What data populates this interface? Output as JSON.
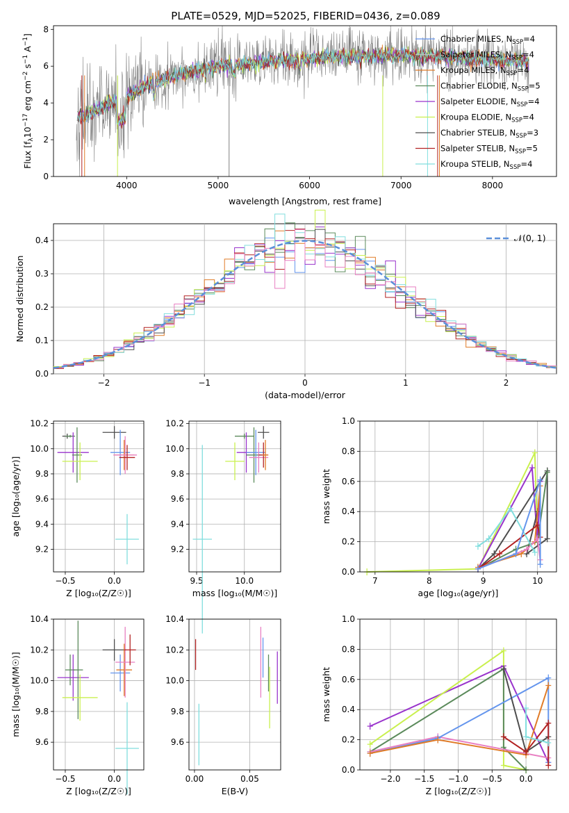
{
  "figure_title": "PLATE=0529, MJD=52025, FIBERID=0436, z=0.089",
  "series_colors": {
    "chabrier_miles": "#6495ed",
    "salpeter_miles": "#c0c0c0",
    "kroupa_miles": "#e07b27",
    "chabrier_elodie": "#5b8a5b",
    "salpeter_elodie": "#9933cc",
    "kroupa_elodie": "#c9f04e",
    "chabrier_stelib": "#4d4d4d",
    "salpeter_stelib": "#b22222",
    "kroupa_stelib": "#80dede",
    "pink": "#e87fc2",
    "data_gray": "#808080"
  },
  "chart_data": [
    {
      "id": "spectrum",
      "type": "line",
      "xlabel": "wavelength [Angstrom, rest frame]",
      "ylabel": "Flux [f_λ 10^-17 erg cm^-2 s^-1 A^-1]",
      "xlim": [
        3200,
        8700
      ],
      "ylim": [
        0,
        8.2
      ],
      "xticks": [
        "4000",
        "5000",
        "6000",
        "7000",
        "8000"
      ],
      "yticks": [
        "0",
        "2",
        "4",
        "6",
        "8"
      ],
      "legend": {
        "placement": "right",
        "entries": [
          {
            "name": "Chabrier MILES, N_SSP=4",
            "text": "Chabrier MILES, N",
            "sub": "SSP",
            "val": "=4",
            "color": "#6495ed"
          },
          {
            "name": "Salpeter MILES, N_SSP=4",
            "text": "Salpeter MILES, N",
            "sub": "SSP",
            "val": "=4",
            "color": "#c0c0c0"
          },
          {
            "name": "Kroupa MILES, N_SSP=4",
            "text": "Kroupa MILES, N",
            "sub": "SSP",
            "val": "=4",
            "color": "#e07b27"
          },
          {
            "name": "Chabrier ELODIE, N_SSP=5",
            "text": "Chabrier ELODIE, N",
            "sub": "SSP",
            "val": "=5",
            "color": "#5b8a5b"
          },
          {
            "name": "Salpeter ELODIE, N_SSP=4",
            "text": "Salpeter ELODIE, N",
            "sub": "SSP",
            "val": "=4",
            "color": "#9933cc"
          },
          {
            "name": "Kroupa ELODIE, N_SSP=4",
            "text": "Kroupa ELODIE, N",
            "sub": "SSP",
            "val": "=4",
            "color": "#c9f04e"
          },
          {
            "name": "Chabrier STELIB, N_SSP=3",
            "text": "Chabrier STELIB, N",
            "sub": "SSP",
            "val": "=3",
            "color": "#4d4d4d"
          },
          {
            "name": "Salpeter STELIB, N_SSP=5",
            "text": "Salpeter STELIB, N",
            "sub": "SSP",
            "val": "=5",
            "color": "#b22222"
          },
          {
            "name": "Kroupa STELIB, N_SSP=4",
            "text": "Kroupa STELIB, N",
            "sub": "SSP",
            "val": "=4",
            "color": "#80dede"
          }
        ]
      },
      "continuum": [
        [
          3450,
          3.2
        ],
        [
          3600,
          3.5
        ],
        [
          3800,
          3.9
        ],
        [
          4000,
          4.3
        ],
        [
          4200,
          4.9
        ],
        [
          4400,
          5.3
        ],
        [
          4600,
          5.6
        ],
        [
          4800,
          5.85
        ],
        [
          5000,
          6.0
        ],
        [
          5400,
          6.2
        ],
        [
          5800,
          6.35
        ],
        [
          6200,
          6.5
        ],
        [
          6600,
          6.55
        ],
        [
          7000,
          6.6
        ],
        [
          7400,
          6.55
        ],
        [
          7800,
          6.4
        ],
        [
          8200,
          6.3
        ],
        [
          8400,
          6.2
        ]
      ]
    },
    {
      "id": "residual_histogram",
      "type": "histogram",
      "xlabel": "(data-model)/error",
      "ylabel": "Normed distribution",
      "xlim": [
        -2.5,
        2.5
      ],
      "ylim": [
        0,
        0.45
      ],
      "xticks": [
        "−2",
        "−1",
        "0",
        "1",
        "2"
      ],
      "yticks": [
        "0.0",
        "0.1",
        "0.2",
        "0.3",
        "0.4"
      ],
      "reference_label": "𝒩(0, 1)",
      "reference_color": "#5b8fd9",
      "bin_width": 0.1
    },
    {
      "id": "age_vs_Z",
      "type": "errorbar",
      "xlabel": "Z [log₁₀(Z/Z☉)]",
      "ylabel": "age  [log₁₀(age/yr)]",
      "xlim": [
        -0.62,
        0.3
      ],
      "ylim": [
        9.02,
        10.22
      ],
      "xticks": [
        "−0.5",
        "0.0"
      ],
      "xtick_values": [
        -0.5,
        0.0
      ],
      "yticks": [
        "9.2",
        "9.4",
        "9.6",
        "9.8",
        "10.0",
        "10.2"
      ],
      "ytick_values": [
        9.2,
        9.4,
        9.6,
        9.8,
        10.0,
        10.2
      ],
      "points": [
        {
          "x": -0.48,
          "xerr": 0.05,
          "y": 10.1,
          "yerr": 0.02,
          "color": "#4d4d4d"
        },
        {
          "x": -0.45,
          "xerr": 0.05,
          "y": 10.1,
          "yerr": 0.01,
          "color": "#5b8a5b"
        },
        {
          "x": -0.42,
          "xerr": 0.16,
          "y": 9.97,
          "yerr": 0.16,
          "color": "#9933cc"
        },
        {
          "x": -0.38,
          "xerr": 0.05,
          "y": 9.95,
          "yerr": 0.22,
          "color": "#5b8a5b"
        },
        {
          "x": -0.35,
          "xerr": 0.18,
          "y": 9.9,
          "yerr": 0.15,
          "color": "#c9f04e"
        },
        {
          "x": 0.0,
          "xerr": 0.12,
          "y": 10.13,
          "yerr": 0.05,
          "color": "#4d4d4d"
        },
        {
          "x": 0.06,
          "xerr": 0.1,
          "y": 9.97,
          "yerr": 0.18,
          "color": "#6495ed"
        },
        {
          "x": 0.1,
          "xerr": 0.1,
          "y": 9.95,
          "yerr": 0.12,
          "color": "#e07b27"
        },
        {
          "x": 0.11,
          "xerr": 0.12,
          "y": 9.95,
          "yerr": 0.15,
          "color": "#e87fc2"
        },
        {
          "x": 0.13,
          "xerr": 0.08,
          "y": 9.93,
          "yerr": 0.1,
          "color": "#b22222"
        },
        {
          "x": 0.13,
          "xerr": 0.12,
          "y": 9.28,
          "yerr": 0.2,
          "color": "#80dede"
        }
      ]
    },
    {
      "id": "age_vs_mass",
      "type": "errorbar",
      "xlabel": "mass [log₁₀(M/M☉)]",
      "ylabel": "",
      "xlim": [
        9.42,
        10.38
      ],
      "ylim": [
        9.02,
        10.22
      ],
      "xticks": [
        "9.5",
        "10.0"
      ],
      "xtick_values": [
        9.5,
        10.0
      ],
      "yticks": [
        "9.2",
        "9.4",
        "9.6",
        "9.8",
        "10.0",
        "10.2"
      ],
      "ytick_values": [
        9.2,
        9.4,
        9.6,
        9.8,
        10.0,
        10.2
      ],
      "points": [
        {
          "x": 9.56,
          "xerr": 0.1,
          "y": 9.28,
          "yerr": 0.75,
          "color": "#80dede"
        },
        {
          "x": 9.9,
          "xerr": 0.1,
          "y": 9.9,
          "yerr": 0.15,
          "color": "#c9f04e"
        },
        {
          "x": 10.0,
          "xerr": 0.1,
          "y": 10.1,
          "yerr": 0.02,
          "color": "#5b8a5b"
        },
        {
          "x": 10.02,
          "xerr": 0.1,
          "y": 9.97,
          "yerr": 0.16,
          "color": "#9933cc"
        },
        {
          "x": 10.1,
          "xerr": 0.08,
          "y": 9.95,
          "yerr": 0.22,
          "color": "#5b8a5b"
        },
        {
          "x": 10.12,
          "xerr": 0.1,
          "y": 9.97,
          "yerr": 0.18,
          "color": "#6495ed"
        },
        {
          "x": 10.15,
          "xerr": 0.1,
          "y": 9.93,
          "yerr": 0.12,
          "color": "#e87fc2"
        },
        {
          "x": 10.2,
          "xerr": 0.06,
          "y": 10.13,
          "yerr": 0.05,
          "color": "#4d4d4d"
        },
        {
          "x": 10.2,
          "xerr": 0.05,
          "y": 9.95,
          "yerr": 0.1,
          "color": "#b22222"
        },
        {
          "x": 10.22,
          "xerr": 0.03,
          "y": 9.95,
          "yerr": 0.12,
          "color": "#e07b27"
        }
      ]
    },
    {
      "id": "weight_vs_age",
      "type": "line",
      "xlabel": "age  [log₁₀(age/yr)]",
      "ylabel": "mass weight",
      "xlim": [
        6.72,
        10.35
      ],
      "ylim": [
        0,
        1.0
      ],
      "xticks": [
        "7",
        "8",
        "9",
        "10"
      ],
      "xtick_values": [
        7,
        8,
        9,
        10
      ],
      "yticks": [
        "0.0",
        "0.2",
        "0.4",
        "0.6",
        "0.8",
        "1.0"
      ],
      "ytick_values": [
        0,
        0.2,
        0.4,
        0.6,
        0.8,
        1.0
      ],
      "series": [
        {
          "color": "#c9f04e",
          "points": [
            [
              6.85,
              0.0
            ],
            [
              8.9,
              0.02
            ],
            [
              9.95,
              0.79
            ],
            [
              10.0,
              0.2
            ]
          ]
        },
        {
          "color": "#9933cc",
          "points": [
            [
              8.9,
              0.02
            ],
            [
              9.9,
              0.69
            ],
            [
              10.0,
              0.2
            ],
            [
              10.05,
              0.6
            ]
          ]
        },
        {
          "color": "#4d4d4d",
          "points": [
            [
              8.9,
              0.02
            ],
            [
              9.2,
              0.12
            ],
            [
              10.18,
              0.67
            ],
            [
              10.18,
              0.22
            ],
            [
              9.8,
              0.12
            ],
            [
              10.0,
              0.4
            ]
          ]
        },
        {
          "color": "#5b8a5b",
          "points": [
            [
              8.9,
              0.02
            ],
            [
              9.6,
              0.15
            ],
            [
              10.0,
              0.2
            ],
            [
              10.18,
              0.66
            ]
          ]
        },
        {
          "color": "#e07b27",
          "points": [
            [
              8.9,
              0.03
            ],
            [
              9.7,
              0.12
            ],
            [
              9.95,
              0.2
            ],
            [
              10.05,
              0.57
            ]
          ]
        },
        {
          "color": "#b22222",
          "points": [
            [
              8.9,
              0.02
            ],
            [
              9.3,
              0.12
            ],
            [
              10.0,
              0.31
            ],
            [
              10.05,
              0.23
            ]
          ]
        },
        {
          "color": "#e87fc2",
          "points": [
            [
              8.9,
              0.02
            ],
            [
              9.8,
              0.15
            ],
            [
              10.0,
              0.22
            ],
            [
              10.05,
              0.08
            ]
          ]
        },
        {
          "color": "#80dede",
          "points": [
            [
              8.9,
              0.17
            ],
            [
              9.1,
              0.22
            ],
            [
              9.5,
              0.42
            ],
            [
              9.95,
              0.13
            ]
          ]
        },
        {
          "color": "#6495ed",
          "points": [
            [
              8.9,
              0.02
            ],
            [
              9.6,
              0.12
            ],
            [
              10.05,
              0.61
            ],
            [
              10.05,
              0.05
            ]
          ]
        }
      ]
    },
    {
      "id": "mass_vs_Z",
      "type": "errorbar",
      "xlabel": "Z [log₁₀(Z/Z☉)]",
      "ylabel": "mass [log₁₀(M/M☉)]",
      "xlim": [
        -0.62,
        0.3
      ],
      "ylim": [
        9.42,
        10.4
      ],
      "xticks": [
        "−0.5",
        "0.0"
      ],
      "xtick_values": [
        -0.5,
        0.0
      ],
      "yticks": [
        "9.6",
        "9.8",
        "10.0",
        "10.2",
        "10.4"
      ],
      "ytick_values": [
        9.6,
        9.8,
        10.0,
        10.2,
        10.4
      ],
      "points": [
        {
          "x": -0.45,
          "xerr": 0.05,
          "y": 10.07,
          "yerr": 0.1,
          "color": "#5b8a5b"
        },
        {
          "x": -0.42,
          "xerr": 0.16,
          "y": 10.02,
          "yerr": 0.15,
          "color": "#9933cc"
        },
        {
          "x": -0.37,
          "xerr": 0.05,
          "y": 10.07,
          "yerr": 0.32,
          "color": "#5b8a5b"
        },
        {
          "x": -0.35,
          "xerr": 0.18,
          "y": 9.89,
          "yerr": 0.15,
          "color": "#c9f04e"
        },
        {
          "x": 0.0,
          "xerr": 0.12,
          "y": 10.2,
          "yerr": 0.07,
          "color": "#4d4d4d"
        },
        {
          "x": 0.06,
          "xerr": 0.1,
          "y": 10.05,
          "yerr": 0.12,
          "color": "#6495ed"
        },
        {
          "x": 0.1,
          "xerr": 0.08,
          "y": 10.07,
          "yerr": 0.17,
          "color": "#e07b27"
        },
        {
          "x": 0.11,
          "xerr": 0.1,
          "y": 10.12,
          "yerr": 0.23,
          "color": "#e87fc2"
        },
        {
          "x": 0.16,
          "xerr": 0.06,
          "y": 10.2,
          "yerr": 0.1,
          "color": "#b22222"
        },
        {
          "x": 0.13,
          "xerr": 0.12,
          "y": 9.56,
          "yerr": 0.3,
          "color": "#80dede"
        }
      ]
    },
    {
      "id": "mass_vs_ebv",
      "type": "errorbar",
      "xlabel": "E(B-V)",
      "ylabel": "",
      "xlim": [
        -0.005,
        0.078
      ],
      "ylim": [
        9.42,
        10.4
      ],
      "xticks": [
        "0.00",
        "0.05"
      ],
      "xtick_values": [
        0.0,
        0.05
      ],
      "yticks": [
        "9.6",
        "9.8",
        "10.0",
        "10.2",
        "10.4"
      ],
      "ytick_values": [
        9.6,
        9.8,
        10.0,
        10.2,
        10.4
      ],
      "points": [
        {
          "x": 0.001,
          "xerr": 0.0,
          "y": 10.17,
          "yerr": 0.1,
          "color": "#b22222"
        },
        {
          "x": 0.004,
          "xerr": 0.0,
          "y": 9.65,
          "yerr": 0.2,
          "color": "#80dede"
        },
        {
          "x": 0.06,
          "xerr": 0.0,
          "y": 10.12,
          "yerr": 0.23,
          "color": "#e87fc2"
        },
        {
          "x": 0.062,
          "xerr": 0.0,
          "y": 10.15,
          "yerr": 0.13,
          "color": "#6495ed"
        },
        {
          "x": 0.067,
          "xerr": 0.0,
          "y": 10.05,
          "yerr": 0.12,
          "color": "#5b8a5b"
        },
        {
          "x": 0.068,
          "xerr": 0.0,
          "y": 9.89,
          "yerr": 0.2,
          "color": "#c9f04e"
        },
        {
          "x": 0.075,
          "xerr": 0.0,
          "y": 10.02,
          "yerr": 0.17,
          "color": "#9933cc"
        }
      ]
    },
    {
      "id": "weight_vs_Z",
      "type": "line",
      "xlabel": "Z [log₁₀(Z/Z☉)]",
      "ylabel": "mass weight",
      "xlim": [
        -2.45,
        0.45
      ],
      "ylim": [
        0,
        1.0
      ],
      "xticks": [
        "−2.0",
        "−1.5",
        "−1.0",
        "−0.5",
        "0.0"
      ],
      "xtick_values": [
        -2.0,
        -1.5,
        -1.0,
        -0.5,
        0.0
      ],
      "yticks": [
        "0.0",
        "0.2",
        "0.4",
        "0.6",
        "0.8",
        "1.0"
      ],
      "ytick_values": [
        0,
        0.2,
        0.4,
        0.6,
        0.8,
        1.0
      ],
      "series": [
        {
          "color": "#9933cc",
          "points": [
            [
              -2.3,
              0.29
            ],
            [
              -0.33,
              0.69
            ],
            [
              0.33,
              0.05
            ]
          ]
        },
        {
          "color": "#c9f04e",
          "points": [
            [
              -2.3,
              0.17
            ],
            [
              -0.33,
              0.79
            ],
            [
              -0.33,
              0.03
            ],
            [
              0.0,
              0.0
            ]
          ]
        },
        {
          "color": "#5b8a5b",
          "points": [
            [
              -2.3,
              0.12
            ],
            [
              -0.33,
              0.67
            ],
            [
              -0.33,
              0.15
            ],
            [
              0.0,
              0.0
            ]
          ]
        },
        {
          "color": "#e87fc2",
          "points": [
            [
              -2.3,
              0.12
            ],
            [
              -1.3,
              0.22
            ],
            [
              0.33,
              0.08
            ]
          ]
        },
        {
          "color": "#6495ed",
          "points": [
            [
              -2.3,
              0.11
            ],
            [
              -1.3,
              0.21
            ],
            [
              0.33,
              0.61
            ],
            [
              0.33,
              0.05
            ]
          ]
        },
        {
          "color": "#e07b27",
          "points": [
            [
              -2.3,
              0.11
            ],
            [
              -1.3,
              0.2
            ],
            [
              0.0,
              0.1
            ],
            [
              0.33,
              0.56
            ]
          ]
        },
        {
          "color": "#4d4d4d",
          "points": [
            [
              -0.33,
              0.67
            ],
            [
              0.0,
              0.12
            ],
            [
              0.33,
              0.22
            ]
          ]
        },
        {
          "color": "#b22222",
          "points": [
            [
              -0.33,
              0.22
            ],
            [
              0.0,
              0.12
            ],
            [
              0.33,
              0.31
            ],
            [
              0.33,
              0.03
            ]
          ]
        },
        {
          "color": "#80dede",
          "points": [
            [
              0.0,
              0.41
            ],
            [
              0.0,
              0.22
            ],
            [
              0.33,
              0.18
            ]
          ]
        }
      ]
    }
  ]
}
